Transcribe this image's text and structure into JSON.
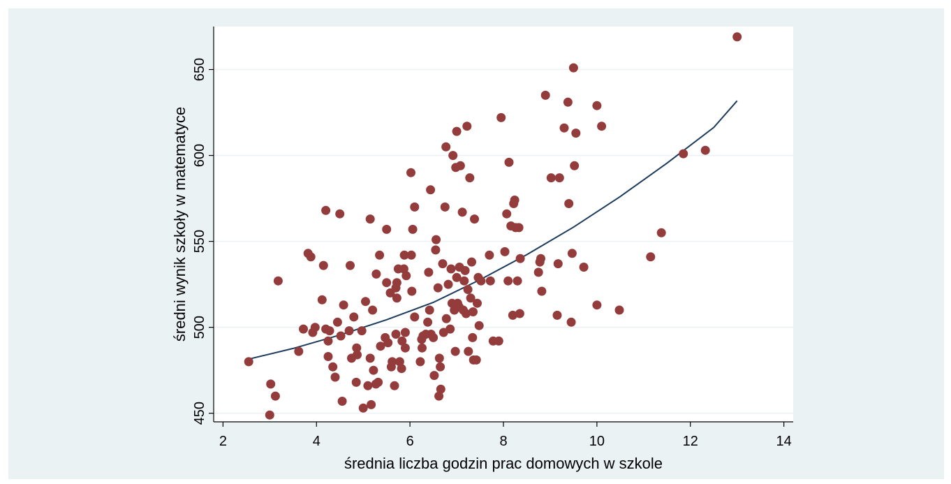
{
  "chart_data": {
    "type": "scatter",
    "xlabel": "średnia liczba godzin prac domowych w szkole",
    "ylabel": "średni wynik szkoły w matematyce",
    "xlim": [
      1.8,
      14.2
    ],
    "ylim": [
      445,
      675
    ],
    "xticks": [
      2,
      4,
      6,
      8,
      10,
      12,
      14
    ],
    "yticks": [
      450,
      500,
      550,
      600,
      650
    ],
    "grid": "horizontal",
    "colors": {
      "background_outer": "#eaf2f3",
      "plot_area": "#ffffff",
      "gridline": "#eaf2f3",
      "points": "#943c3c",
      "fit_line": "#1b3a5c"
    },
    "points": [
      [
        2.55,
        480
      ],
      [
        3.0,
        449
      ],
      [
        3.02,
        467
      ],
      [
        3.12,
        460
      ],
      [
        3.18,
        527
      ],
      [
        3.62,
        486
      ],
      [
        3.72,
        499
      ],
      [
        3.82,
        543
      ],
      [
        3.88,
        541
      ],
      [
        3.92,
        497
      ],
      [
        3.97,
        500
      ],
      [
        4.12,
        516
      ],
      [
        4.15,
        536
      ],
      [
        4.2,
        499
      ],
      [
        4.2,
        568
      ],
      [
        4.25,
        483
      ],
      [
        4.25,
        492
      ],
      [
        4.28,
        498
      ],
      [
        4.35,
        477
      ],
      [
        4.4,
        471
      ],
      [
        4.45,
        503
      ],
      [
        4.5,
        566
      ],
      [
        4.52,
        495
      ],
      [
        4.55,
        457
      ],
      [
        4.58,
        513
      ],
      [
        4.7,
        498
      ],
      [
        4.72,
        536
      ],
      [
        4.75,
        482
      ],
      [
        4.8,
        506
      ],
      [
        4.85,
        468
      ],
      [
        4.86,
        488
      ],
      [
        4.87,
        484
      ],
      [
        4.97,
        498
      ],
      [
        5.0,
        453
      ],
      [
        5.05,
        515
      ],
      [
        5.1,
        466
      ],
      [
        5.15,
        482
      ],
      [
        5.15,
        563
      ],
      [
        5.17,
        455
      ],
      [
        5.2,
        510
      ],
      [
        5.22,
        475
      ],
      [
        5.27,
        467
      ],
      [
        5.28,
        531
      ],
      [
        5.32,
        468
      ],
      [
        5.35,
        542
      ],
      [
        5.37,
        489
      ],
      [
        5.47,
        494
      ],
      [
        5.5,
        557
      ],
      [
        5.5,
        526
      ],
      [
        5.53,
        491
      ],
      [
        5.58,
        520
      ],
      [
        5.6,
        477
      ],
      [
        5.62,
        480
      ],
      [
        5.67,
        466
      ],
      [
        5.7,
        496
      ],
      [
        5.7,
        523
      ],
      [
        5.72,
        517
      ],
      [
        5.72,
        526
      ],
      [
        5.75,
        534
      ],
      [
        5.78,
        480
      ],
      [
        5.82,
        476
      ],
      [
        5.83,
        492
      ],
      [
        5.87,
        534
      ],
      [
        5.88,
        542
      ],
      [
        5.9,
        488
      ],
      [
        5.9,
        497
      ],
      [
        5.92,
        530
      ],
      [
        6.02,
        590
      ],
      [
        6.03,
        542
      ],
      [
        6.04,
        521
      ],
      [
        6.06,
        557
      ],
      [
        6.1,
        570
      ],
      [
        6.1,
        506
      ],
      [
        6.22,
        480
      ],
      [
        6.25,
        493
      ],
      [
        6.26,
        488
      ],
      [
        6.28,
        495
      ],
      [
        6.34,
        496
      ],
      [
        6.38,
        503
      ],
      [
        6.4,
        532
      ],
      [
        6.42,
        510
      ],
      [
        6.44,
        580
      ],
      [
        6.45,
        496
      ],
      [
        6.5,
        494
      ],
      [
        6.52,
        472
      ],
      [
        6.55,
        545
      ],
      [
        6.56,
        551
      ],
      [
        6.6,
        523
      ],
      [
        6.62,
        460
      ],
      [
        6.63,
        482
      ],
      [
        6.65,
        477
      ],
      [
        6.66,
        464
      ],
      [
        6.7,
        537
      ],
      [
        6.72,
        497
      ],
      [
        6.75,
        570
      ],
      [
        6.77,
        605
      ],
      [
        6.78,
        505
      ],
      [
        6.82,
        525
      ],
      [
        6.86,
        499
      ],
      [
        6.88,
        534
      ],
      [
        6.9,
        514
      ],
      [
        6.92,
        600
      ],
      [
        6.95,
        510
      ],
      [
        6.97,
        486
      ],
      [
        6.98,
        593
      ],
      [
        7.0,
        614
      ],
      [
        7.0,
        529
      ],
      [
        7.02,
        514
      ],
      [
        7.05,
        512
      ],
      [
        7.06,
        535
      ],
      [
        7.08,
        594
      ],
      [
        7.12,
        567
      ],
      [
        7.14,
        510
      ],
      [
        7.16,
        527
      ],
      [
        7.18,
        533
      ],
      [
        7.2,
        508
      ],
      [
        7.22,
        617
      ],
      [
        7.24,
        522
      ],
      [
        7.25,
        486
      ],
      [
        7.28,
        587
      ],
      [
        7.3,
        517
      ],
      [
        7.32,
        538
      ],
      [
        7.34,
        494
      ],
      [
        7.35,
        509
      ],
      [
        7.36,
        481
      ],
      [
        7.38,
        563
      ],
      [
        7.42,
        481
      ],
      [
        7.44,
        514
      ],
      [
        7.46,
        529
      ],
      [
        7.48,
        501
      ],
      [
        7.52,
        527
      ],
      [
        7.7,
        542
      ],
      [
        7.72,
        527
      ],
      [
        7.78,
        492
      ],
      [
        7.9,
        492
      ],
      [
        7.95,
        622
      ],
      [
        8.03,
        544
      ],
      [
        8.07,
        566
      ],
      [
        8.1,
        527
      ],
      [
        8.12,
        596
      ],
      [
        8.16,
        559
      ],
      [
        8.2,
        507
      ],
      [
        8.22,
        572
      ],
      [
        8.24,
        574
      ],
      [
        8.26,
        558
      ],
      [
        8.3,
        527
      ],
      [
        8.33,
        558
      ],
      [
        8.35,
        508
      ],
      [
        8.36,
        540
      ],
      [
        8.75,
        532
      ],
      [
        8.78,
        538
      ],
      [
        8.8,
        540
      ],
      [
        8.82,
        521
      ],
      [
        8.9,
        635
      ],
      [
        9.02,
        587
      ],
      [
        9.15,
        507
      ],
      [
        9.17,
        537
      ],
      [
        9.2,
        587
      ],
      [
        9.3,
        616
      ],
      [
        9.38,
        631
      ],
      [
        9.4,
        572
      ],
      [
        9.45,
        503
      ],
      [
        9.47,
        543
      ],
      [
        9.5,
        651
      ],
      [
        9.52,
        594
      ],
      [
        9.55,
        613
      ],
      [
        9.72,
        535
      ],
      [
        10.0,
        629
      ],
      [
        10.0,
        513
      ],
      [
        10.1,
        617
      ],
      [
        10.48,
        510
      ],
      [
        11.15,
        541
      ],
      [
        11.38,
        555
      ],
      [
        11.85,
        601
      ],
      [
        12.32,
        603
      ],
      [
        13.0,
        669
      ]
    ],
    "fit_line": [
      [
        2.55,
        481.5
      ],
      [
        3.5,
        487.7
      ],
      [
        4.5,
        495.5
      ],
      [
        5.5,
        504.4
      ],
      [
        6.5,
        514.5
      ],
      [
        7.5,
        527.7
      ],
      [
        8.5,
        542.3
      ],
      [
        9.5,
        558.3
      ],
      [
        10.5,
        576.1
      ],
      [
        11.5,
        595.5
      ],
      [
        12.5,
        616.3
      ],
      [
        13.0,
        631.8
      ]
    ]
  }
}
